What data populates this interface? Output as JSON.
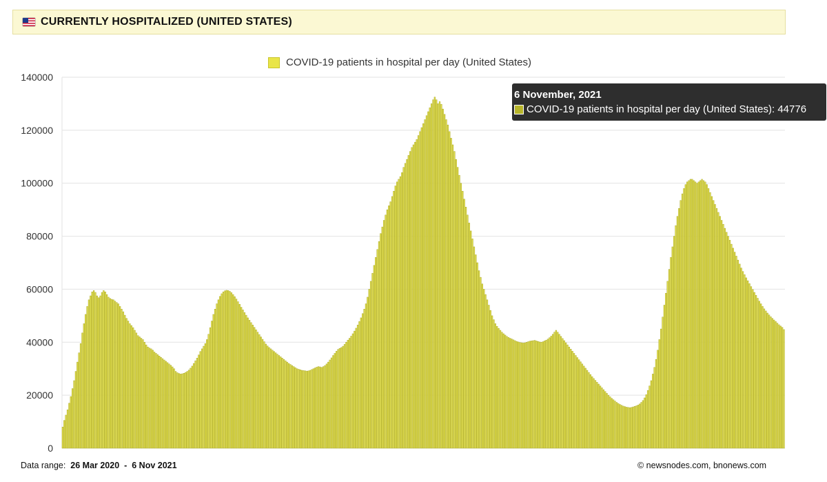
{
  "header": {
    "flag_icon": "us-flag-icon",
    "title": "CURRENTLY HOSPITALIZED (UNITED STATES)"
  },
  "tooltip": {
    "date": "6 November, 2021",
    "label": "COVID-19 patients in hospital per day (United States): 44776"
  },
  "footer": {
    "range_label": "Data range:",
    "range_start": "26 Mar 2020",
    "range_sep": "-",
    "range_end": "6 Nov 2021",
    "copyright": "©  newsnodes.com, bnonews.com"
  },
  "colors": {
    "bar_fill": "#e4e14a",
    "bar_stroke": "#a9a72a",
    "grid": "#e2e2e2"
  },
  "chart_data": {
    "type": "bar",
    "title": "",
    "series_name": "COVID-19 patients in hospital per day (United States)",
    "xlabel": "",
    "ylabel": "",
    "x_start": "26 Mar 2020",
    "x_end": "6 Nov 2021",
    "ylim": [
      0,
      140000
    ],
    "yticks": [
      "0",
      "20000",
      "40000",
      "60000",
      "80000",
      "100000",
      "120000",
      "140000"
    ],
    "grid": true,
    "legend_position": "top-center",
    "values": [
      8000,
      10500,
      12500,
      14500,
      17000,
      19500,
      22500,
      25500,
      29000,
      32500,
      36000,
      39500,
      43500,
      47000,
      50500,
      53500,
      56000,
      57500,
      59000,
      59500,
      58800,
      57500,
      56800,
      57500,
      58800,
      59500,
      59000,
      58000,
      57000,
      56500,
      56200,
      56000,
      55500,
      55000,
      54500,
      53500,
      52500,
      51500,
      50200,
      49000,
      48000,
      47000,
      46300,
      45500,
      44500,
      43500,
      42500,
      42000,
      41500,
      41000,
      40000,
      39000,
      38200,
      37800,
      37500,
      37000,
      36300,
      35800,
      35300,
      34800,
      34300,
      33800,
      33300,
      32800,
      32300,
      31800,
      31300,
      30700,
      30000,
      29000,
      28500,
      28200,
      28000,
      28100,
      28300,
      28600,
      29000,
      29500,
      30200,
      31000,
      32000,
      33000,
      34000,
      35200,
      36500,
      37500,
      38500,
      39500,
      41000,
      43000,
      45500,
      48000,
      50500,
      52500,
      54500,
      56000,
      57300,
      58300,
      59000,
      59400,
      59600,
      59500,
      59200,
      58700,
      58000,
      57200,
      56300,
      55300,
      54300,
      53200,
      52200,
      51200,
      50200,
      49200,
      48300,
      47400,
      46500,
      45600,
      44700,
      43800,
      42900,
      42000,
      41100,
      40200,
      39300,
      38600,
      38000,
      37500,
      37000,
      36500,
      36000,
      35500,
      35000,
      34500,
      34000,
      33500,
      33000,
      32500,
      32000,
      31600,
      31200,
      30800,
      30400,
      30000,
      29800,
      29600,
      29400,
      29300,
      29200,
      29100,
      29200,
      29400,
      29700,
      30000,
      30300,
      30600,
      30800,
      30700,
      30500,
      30800,
      31200,
      31800,
      32500,
      33300,
      34100,
      35000,
      35800,
      36600,
      37300,
      37700,
      38000,
      38500,
      39200,
      40000,
      40800,
      41500,
      42300,
      43200,
      44200,
      45300,
      46500,
      47800,
      49200,
      50800,
      52500,
      54500,
      57000,
      60000,
      63000,
      66000,
      69000,
      72000,
      75000,
      78000,
      81000,
      83500,
      86000,
      88000,
      90000,
      91500,
      93000,
      95000,
      97000,
      99000,
      100500,
      101500,
      102500,
      104000,
      106000,
      107500,
      109000,
      110500,
      112000,
      113500,
      114500,
      115500,
      116500,
      118000,
      119500,
      121000,
      122500,
      124000,
      125500,
      127000,
      128500,
      130000,
      131500,
      132500,
      131500,
      130000,
      130800,
      129800,
      128000,
      126000,
      124000,
      122000,
      119500,
      117000,
      114500,
      112000,
      109000,
      106000,
      103000,
      100000,
      97000,
      94000,
      91000,
      88000,
      85000,
      82000,
      79000,
      76000,
      73000,
      70000,
      67000,
      64500,
      62000,
      60000,
      58000,
      56000,
      54000,
      52000,
      50000,
      48500,
      47000,
      46000,
      45200,
      44500,
      43800,
      43200,
      42700,
      42200,
      41800,
      41500,
      41200,
      40900,
      40600,
      40300,
      40100,
      39900,
      39800,
      39700,
      39800,
      40000,
      40200,
      40400,
      40500,
      40600,
      40700,
      40500,
      40300,
      40100,
      40000,
      40200,
      40500,
      40800,
      41200,
      41700,
      42300,
      43000,
      43800,
      44500,
      43800,
      43000,
      42200,
      41400,
      40600,
      39800,
      39000,
      38200,
      37400,
      36600,
      35800,
      35000,
      34200,
      33400,
      32600,
      31800,
      31000,
      30200,
      29400,
      28600,
      27800,
      27000,
      26300,
      25600,
      24900,
      24200,
      23500,
      22800,
      22100,
      21400,
      20700,
      20000,
      19400,
      18800,
      18300,
      17800,
      17300,
      16900,
      16500,
      16200,
      15900,
      15700,
      15500,
      15400,
      15300,
      15400,
      15600,
      15800,
      16000,
      16300,
      16700,
      17300,
      18000,
      19000,
      20200,
      21800,
      23500,
      25500,
      28000,
      30500,
      33500,
      37000,
      41000,
      45000,
      49500,
      54000,
      58500,
      63000,
      67500,
      72000,
      76000,
      80000,
      84000,
      87500,
      90500,
      93500,
      96000,
      98000,
      99500,
      100500,
      101000,
      101500,
      101500,
      101000,
      100500,
      100000,
      100500,
      101000,
      101500,
      101000,
      100500,
      99500,
      98000,
      96500,
      95000,
      93500,
      92000,
      90500,
      89000,
      87500,
      86000,
      84500,
      83000,
      81500,
      80000,
      78500,
      77000,
      75500,
      74000,
      72500,
      71000,
      69500,
      68000,
      66700,
      65500,
      64300,
      63200,
      62100,
      61000,
      59900,
      58800,
      57700,
      56600,
      55500,
      54500,
      53500,
      52600,
      51800,
      51000,
      50300,
      49600,
      49000,
      48400,
      47800,
      47200,
      46600,
      46100,
      45600,
      44776
    ]
  }
}
